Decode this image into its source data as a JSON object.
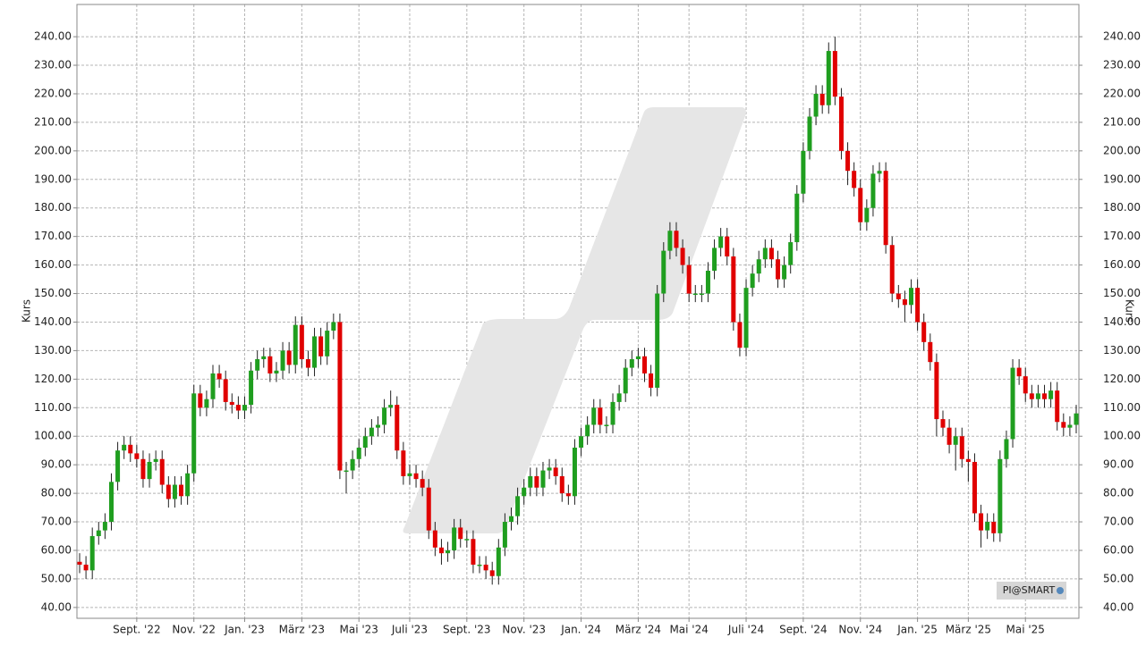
{
  "chart_data": {
    "type": "candlestick",
    "y_label": "Kurs",
    "logo": "PI@SMART",
    "up_color": "#1f9e1f",
    "down_color": "#e00000",
    "grid": true,
    "ylim": [
      36.2,
      251.3
    ],
    "yticks": [
      {
        "value": 40,
        "label": "40.00"
      },
      {
        "value": 50,
        "label": "50.00"
      },
      {
        "value": 60,
        "label": "60.00"
      },
      {
        "value": 70,
        "label": "70.00"
      },
      {
        "value": 80,
        "label": "80.00"
      },
      {
        "value": 90,
        "label": "90.00"
      },
      {
        "value": 100,
        "label": "100.00"
      },
      {
        "value": 110,
        "label": "110.00"
      },
      {
        "value": 120,
        "label": "120.00"
      },
      {
        "value": 130,
        "label": "130.00"
      },
      {
        "value": 140,
        "label": "140.00"
      },
      {
        "value": 150,
        "label": "150.00"
      },
      {
        "value": 160,
        "label": "160.00"
      },
      {
        "value": 170,
        "label": "170.00"
      },
      {
        "value": 180,
        "label": "180.00"
      },
      {
        "value": 190,
        "label": "190.00"
      },
      {
        "value": 200,
        "label": "200.00"
      },
      {
        "value": 210,
        "label": "210.00"
      },
      {
        "value": 220,
        "label": "220.00"
      },
      {
        "value": 230,
        "label": "230.00"
      },
      {
        "value": 240,
        "label": "240.00"
      }
    ],
    "categories": [
      null,
      null,
      null,
      null,
      null,
      null,
      null,
      null,
      null,
      "Sept. '22",
      null,
      null,
      null,
      null,
      null,
      null,
      null,
      null,
      "Nov. '22",
      null,
      null,
      null,
      null,
      null,
      null,
      null,
      "Jan. '23",
      null,
      null,
      null,
      null,
      null,
      null,
      null,
      null,
      "März '23",
      null,
      null,
      null,
      null,
      null,
      null,
      null,
      null,
      "Mai '23",
      null,
      null,
      null,
      null,
      null,
      null,
      null,
      "Juli '23",
      null,
      null,
      null,
      null,
      null,
      null,
      null,
      null,
      "Sept. '23",
      null,
      null,
      null,
      null,
      null,
      null,
      null,
      null,
      "Nov. '23",
      null,
      null,
      null,
      null,
      null,
      null,
      null,
      null,
      "Jan. '24",
      null,
      null,
      null,
      null,
      null,
      null,
      null,
      null,
      "März '24",
      null,
      null,
      null,
      null,
      null,
      null,
      null,
      "Mai '24",
      null,
      null,
      null,
      null,
      null,
      null,
      null,
      null,
      "Juli '24",
      null,
      null,
      null,
      null,
      null,
      null,
      null,
      null,
      "Sept. '24",
      null,
      null,
      null,
      null,
      null,
      null,
      null,
      null,
      "Nov. '24",
      null,
      null,
      null,
      null,
      null,
      null,
      null,
      null,
      "Jan. '25",
      null,
      null,
      null,
      null,
      null,
      null,
      null,
      "März '25",
      null,
      null,
      null,
      null,
      null,
      null,
      null,
      null,
      "Mai '25",
      null,
      null,
      null,
      null,
      null,
      null,
      null,
      null
    ],
    "open": [
      56,
      55,
      53,
      65,
      67,
      70,
      84,
      95,
      97,
      94,
      92,
      85,
      91,
      92,
      83,
      78,
      83,
      79,
      87,
      115,
      110,
      113,
      122,
      120,
      112,
      111,
      109,
      111,
      123,
      127,
      128,
      122,
      123,
      130,
      125,
      139,
      127,
      124,
      135,
      128,
      137,
      140,
      88,
      88,
      92,
      96,
      100,
      103,
      104,
      110,
      111,
      95,
      86,
      87,
      85,
      82,
      67,
      61,
      59,
      60,
      68,
      64,
      64,
      55,
      55,
      53,
      51,
      61,
      70,
      72,
      79,
      82,
      86,
      82,
      88,
      89,
      86,
      80,
      79,
      96,
      100,
      104,
      110,
      104,
      104,
      112,
      115,
      124,
      127,
      128,
      122,
      117,
      150,
      165,
      172,
      166,
      160,
      150,
      150,
      150,
      158,
      166,
      170,
      163,
      140,
      131,
      152,
      157,
      162,
      166,
      162,
      155,
      160,
      168,
      185,
      200,
      212,
      220,
      216,
      235,
      219,
      200,
      193,
      187,
      175,
      180,
      192,
      193,
      167,
      150,
      148,
      146,
      152,
      140,
      133,
      126,
      106,
      103,
      97,
      100,
      92,
      91,
      73,
      67,
      70,
      66,
      92,
      99,
      124,
      121,
      115,
      113,
      115,
      113,
      116,
      105,
      103,
      104
    ],
    "high": [
      59,
      58,
      68,
      70,
      73,
      87,
      98,
      100,
      100,
      97,
      95,
      94,
      95,
      95,
      86,
      86,
      86,
      90,
      118,
      118,
      116,
      125,
      125,
      123,
      115,
      114,
      114,
      126,
      130,
      131,
      131,
      126,
      133,
      133,
      142,
      142,
      130,
      138,
      138,
      140,
      143,
      143,
      91,
      95,
      99,
      103,
      106,
      107,
      113,
      116,
      114,
      98,
      90,
      90,
      88,
      85,
      70,
      64,
      63,
      71,
      71,
      67,
      67,
      58,
      58,
      56,
      64,
      73,
      75,
      82,
      85,
      89,
      89,
      91,
      92,
      92,
      89,
      83,
      99,
      103,
      107,
      113,
      113,
      107,
      115,
      118,
      127,
      130,
      131,
      131,
      125,
      153,
      168,
      175,
      175,
      169,
      163,
      153,
      153,
      161,
      169,
      173,
      173,
      166,
      143,
      155,
      160,
      165,
      169,
      169,
      165,
      163,
      171,
      188,
      203,
      215,
      223,
      223,
      238,
      240,
      222,
      203,
      196,
      190,
      183,
      195,
      196,
      196,
      170,
      153,
      151,
      155,
      155,
      143,
      136,
      129,
      109,
      106,
      103,
      103,
      95,
      94,
      76,
      73,
      73,
      95,
      102,
      127,
      127,
      124,
      118,
      118,
      118,
      119,
      119,
      108,
      107,
      111
    ],
    "low": [
      52,
      50,
      50,
      62,
      64,
      67,
      81,
      92,
      91,
      89,
      82,
      82,
      88,
      80,
      75,
      75,
      76,
      76,
      84,
      107,
      107,
      110,
      117,
      109,
      108,
      106,
      106,
      108,
      120,
      124,
      119,
      119,
      120,
      122,
      122,
      124,
      121,
      121,
      125,
      125,
      134,
      85,
      80,
      85,
      89,
      93,
      97,
      100,
      101,
      107,
      92,
      83,
      83,
      82,
      79,
      64,
      58,
      55,
      56,
      57,
      61,
      61,
      52,
      52,
      50,
      48,
      48,
      58,
      67,
      69,
      76,
      79,
      79,
      79,
      85,
      83,
      77,
      76,
      76,
      93,
      97,
      101,
      101,
      101,
      101,
      109,
      112,
      121,
      124,
      119,
      114,
      114,
      147,
      162,
      163,
      157,
      147,
      147,
      147,
      147,
      155,
      163,
      160,
      137,
      128,
      128,
      149,
      154,
      159,
      159,
      152,
      152,
      157,
      165,
      182,
      197,
      209,
      213,
      213,
      216,
      197,
      188,
      184,
      172,
      172,
      177,
      189,
      164,
      147,
      145,
      140,
      143,
      137,
      130,
      123,
      100,
      100,
      94,
      88,
      89,
      84,
      70,
      61,
      64,
      63,
      63,
      89,
      96,
      118,
      112,
      110,
      110,
      110,
      110,
      102,
      100,
      100,
      101
    ],
    "close": [
      55,
      53,
      65,
      67,
      70,
      84,
      95,
      97,
      94,
      92,
      85,
      91,
      92,
      83,
      78,
      83,
      79,
      87,
      115,
      110,
      113,
      122,
      120,
      112,
      111,
      109,
      111,
      123,
      127,
      128,
      122,
      123,
      130,
      125,
      139,
      127,
      124,
      135,
      128,
      137,
      140,
      88,
      88,
      92,
      96,
      100,
      103,
      104,
      110,
      111,
      95,
      86,
      87,
      85,
      82,
      67,
      61,
      59,
      60,
      68,
      64,
      64,
      55,
      55,
      53,
      51,
      61,
      70,
      72,
      79,
      82,
      86,
      82,
      88,
      89,
      86,
      80,
      79,
      96,
      100,
      104,
      110,
      104,
      104,
      112,
      115,
      124,
      127,
      128,
      122,
      117,
      150,
      165,
      172,
      166,
      160,
      150,
      150,
      150,
      158,
      166,
      170,
      163,
      140,
      131,
      152,
      157,
      162,
      166,
      162,
      155,
      160,
      168,
      185,
      200,
      212,
      220,
      216,
      235,
      219,
      200,
      193,
      187,
      175,
      180,
      192,
      193,
      167,
      150,
      148,
      146,
      152,
      140,
      133,
      126,
      106,
      103,
      97,
      100,
      92,
      91,
      73,
      67,
      70,
      66,
      92,
      99,
      124,
      121,
      115,
      113,
      115,
      113,
      116,
      105,
      103,
      104,
      108
    ]
  }
}
